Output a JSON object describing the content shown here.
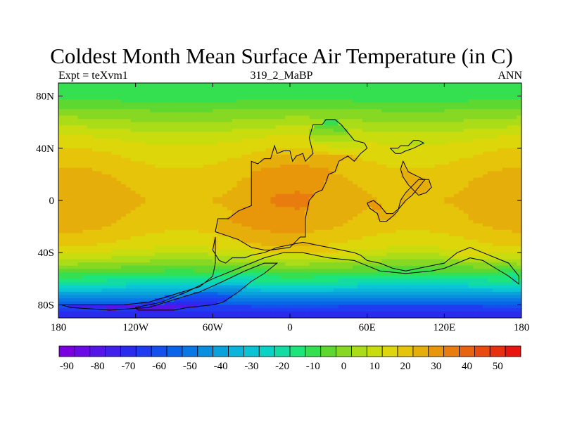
{
  "chart_data": {
    "type": "heatmap",
    "title": "Coldest Month Mean Surface Air Temperature (in C)",
    "subtitle_left": "Expt = teXvm1",
    "subtitle_center": "319_2_MaBP",
    "subtitle_right": "ANN",
    "x_ticks": [
      "180",
      "120W",
      "60W",
      "0",
      "60E",
      "120E",
      "180"
    ],
    "x_tick_values": [
      -180,
      -120,
      -60,
      0,
      60,
      120,
      180
    ],
    "y_ticks": [
      "80N",
      "40N",
      "0",
      "40S",
      "80S"
    ],
    "y_tick_values": [
      80,
      40,
      0,
      -40,
      -80
    ],
    "xlim": [
      -180,
      180
    ],
    "ylim": [
      -90,
      90
    ],
    "colorbar": {
      "levels": [
        -90,
        -85,
        -80,
        -75,
        -70,
        -65,
        -60,
        -55,
        -50,
        -45,
        -40,
        -35,
        -30,
        -25,
        -20,
        -15,
        -10,
        -5,
        0,
        5,
        10,
        15,
        20,
        25,
        30,
        35,
        40,
        45,
        50,
        55
      ],
      "labels": [
        "-90",
        "-80",
        "-70",
        "-60",
        "-50",
        "-40",
        "-30",
        "-20",
        "-10",
        "0",
        "10",
        "20",
        "30",
        "40",
        "50"
      ],
      "label_values": [
        -90,
        -80,
        -70,
        -60,
        -50,
        -40,
        -30,
        -20,
        -10,
        0,
        10,
        20,
        30,
        40,
        50
      ],
      "colors": [
        "#7b00e0",
        "#6a0ae6",
        "#5514e8",
        "#4020ea",
        "#2b2bee",
        "#1f3cf0",
        "#1450ee",
        "#0a64ea",
        "#0a78e4",
        "#0a8ede",
        "#0aa2dc",
        "#0ab4da",
        "#0ac4d6",
        "#0ad2c4",
        "#12dca4",
        "#1ee47c",
        "#34e050",
        "#5ed830",
        "#86d822",
        "#aadc18",
        "#c8dc0e",
        "#dcd60a",
        "#e6c40a",
        "#e6ae0a",
        "#e8960a",
        "#e87c0e",
        "#e86410",
        "#e84a10",
        "#e83010",
        "#e81410"
      ]
    },
    "latitude_profile": [
      {
        "lat": 90,
        "value": -10
      },
      {
        "lat": 80,
        "value": -8
      },
      {
        "lat": 70,
        "value": 0
      },
      {
        "lat": 60,
        "value": 6
      },
      {
        "lat": 50,
        "value": 13
      },
      {
        "lat": 40,
        "value": 18
      },
      {
        "lat": 20,
        "value": 24
      },
      {
        "lat": 0,
        "value": 27
      },
      {
        "lat": -20,
        "value": 24
      },
      {
        "lat": -35,
        "value": 18
      },
      {
        "lat": -45,
        "value": 8
      },
      {
        "lat": -55,
        "value": -5
      },
      {
        "lat": -65,
        "value": -22
      },
      {
        "lat": -75,
        "value": -45
      },
      {
        "lat": -82,
        "value": -62
      },
      {
        "lat": -90,
        "value": -70
      }
    ],
    "continent_anomaly": {
      "land_interior_lowlat": 6,
      "land_midlat_north": -18,
      "land_southern_polar": -15
    },
    "continent_outlines": [
      {
        "name": "laurasia-africa-europe",
        "points": [
          [
            -30,
            30
          ],
          [
            -25,
            28
          ],
          [
            -20,
            32
          ],
          [
            -15,
            32
          ],
          [
            -12,
            42
          ],
          [
            -10,
            36
          ],
          [
            -5,
            38
          ],
          [
            0,
            38
          ],
          [
            2,
            30
          ],
          [
            5,
            34
          ],
          [
            10,
            36
          ],
          [
            12,
            30
          ],
          [
            18,
            36
          ],
          [
            15,
            48
          ],
          [
            18,
            58
          ],
          [
            25,
            58
          ],
          [
            28,
            62
          ],
          [
            35,
            62
          ],
          [
            40,
            58
          ],
          [
            45,
            52
          ],
          [
            50,
            46
          ],
          [
            58,
            44
          ],
          [
            60,
            40
          ],
          [
            55,
            36
          ],
          [
            50,
            30
          ],
          [
            45,
            34
          ],
          [
            38,
            30
          ],
          [
            35,
            22
          ],
          [
            30,
            20
          ],
          [
            28,
            14
          ],
          [
            25,
            8
          ],
          [
            20,
            6
          ],
          [
            15,
            0
          ],
          [
            12,
            -14
          ],
          [
            12,
            -28
          ],
          [
            8,
            -28
          ],
          [
            0,
            -36
          ],
          [
            -15,
            -38
          ],
          [
            -20,
            -38
          ],
          [
            -30,
            -36
          ],
          [
            -40,
            -30
          ],
          [
            -52,
            -26
          ],
          [
            -58,
            -24
          ],
          [
            -56,
            -14
          ],
          [
            -48,
            -14
          ],
          [
            -40,
            -8
          ],
          [
            -35,
            -6
          ],
          [
            -30,
            -4
          ],
          [
            -30,
            14
          ],
          [
            -30,
            30
          ]
        ]
      },
      {
        "name": "gondwana-south-america",
        "points": [
          [
            -58,
            -28
          ],
          [
            -60,
            -38
          ],
          [
            -55,
            -46
          ],
          [
            -50,
            -48
          ],
          [
            -45,
            -44
          ],
          [
            -35,
            -44
          ],
          [
            -30,
            -42
          ],
          [
            -20,
            -40
          ],
          [
            -10,
            -36
          ],
          [
            0,
            -34
          ],
          [
            10,
            -32
          ],
          [
            20,
            -34
          ],
          [
            30,
            -36
          ],
          [
            40,
            -38
          ],
          [
            50,
            -40
          ],
          [
            55,
            -42
          ],
          [
            60,
            -46
          ],
          [
            70,
            -48
          ],
          [
            80,
            -52
          ],
          [
            90,
            -54
          ],
          [
            100,
            -52
          ],
          [
            110,
            -50
          ],
          [
            120,
            -48
          ],
          [
            130,
            -40
          ],
          [
            140,
            -36
          ],
          [
            150,
            -40
          ],
          [
            160,
            -44
          ],
          [
            170,
            -48
          ],
          [
            178,
            -58
          ],
          [
            178,
            -64
          ],
          [
            170,
            -58
          ],
          [
            160,
            -52
          ],
          [
            150,
            -46
          ],
          [
            140,
            -44
          ],
          [
            130,
            -48
          ],
          [
            120,
            -52
          ],
          [
            110,
            -54
          ],
          [
            90,
            -56
          ],
          [
            70,
            -54
          ],
          [
            50,
            -46
          ],
          [
            30,
            -44
          ],
          [
            10,
            -40
          ],
          [
            -5,
            -40
          ],
          [
            -20,
            -44
          ],
          [
            -40,
            -52
          ],
          [
            -60,
            -60
          ],
          [
            -80,
            -70
          ],
          [
            -100,
            -78
          ],
          [
            -120,
            -82
          ],
          [
            -118,
            -84
          ],
          [
            -90,
            -84
          ],
          [
            -80,
            -82
          ],
          [
            -60,
            -80
          ],
          [
            -52,
            -78
          ],
          [
            -40,
            -70
          ],
          [
            -30,
            -62
          ],
          [
            -20,
            -56
          ],
          [
            -10,
            -48
          ],
          [
            -20,
            -48
          ],
          [
            -35,
            -54
          ],
          [
            -52,
            -62
          ],
          [
            -70,
            -70
          ],
          [
            -90,
            -76
          ],
          [
            -110,
            -82
          ],
          [
            -140,
            -84
          ],
          [
            -170,
            -82
          ],
          [
            -178,
            -80
          ],
          [
            -160,
            -80
          ],
          [
            -130,
            -80
          ],
          [
            -110,
            -78
          ],
          [
            -90,
            -72
          ],
          [
            -70,
            -66
          ],
          [
            -60,
            -58
          ],
          [
            -58,
            -48
          ],
          [
            -58,
            -28
          ]
        ]
      },
      {
        "name": "asia-block-1",
        "points": [
          [
            60,
            -2
          ],
          [
            62,
            -6
          ],
          [
            68,
            -10
          ],
          [
            70,
            -16
          ],
          [
            75,
            -16
          ],
          [
            80,
            -12
          ],
          [
            84,
            -8
          ],
          [
            86,
            0
          ],
          [
            90,
            6
          ],
          [
            96,
            12
          ],
          [
            100,
            16
          ],
          [
            105,
            16
          ],
          [
            100,
            10
          ],
          [
            95,
            4
          ],
          [
            90,
            0
          ],
          [
            85,
            -6
          ],
          [
            80,
            -10
          ],
          [
            75,
            -10
          ],
          [
            70,
            -4
          ],
          [
            65,
            0
          ],
          [
            60,
            -2
          ]
        ]
      },
      {
        "name": "asia-block-2",
        "points": [
          [
            78,
            40
          ],
          [
            84,
            40
          ],
          [
            86,
            42
          ],
          [
            92,
            42
          ],
          [
            96,
            46
          ],
          [
            100,
            46
          ],
          [
            104,
            44
          ],
          [
            100,
            42
          ],
          [
            96,
            40
          ],
          [
            90,
            38
          ],
          [
            86,
            36
          ],
          [
            82,
            36
          ],
          [
            78,
            40
          ]
        ]
      },
      {
        "name": "asia-block-3",
        "points": [
          [
            88,
            30
          ],
          [
            90,
            26
          ],
          [
            92,
            22
          ],
          [
            96,
            20
          ],
          [
            100,
            18
          ],
          [
            104,
            16
          ],
          [
            108,
            16
          ],
          [
            110,
            10
          ],
          [
            106,
            6
          ],
          [
            100,
            4
          ],
          [
            96,
            8
          ],
          [
            92,
            12
          ],
          [
            88,
            18
          ],
          [
            86,
            24
          ],
          [
            88,
            30
          ]
        ]
      }
    ]
  }
}
